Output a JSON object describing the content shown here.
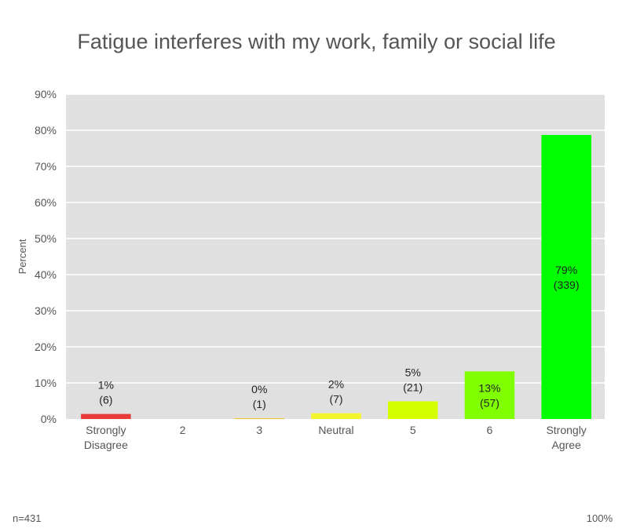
{
  "chart_data": {
    "type": "bar",
    "title": "Fatigue interferes with my work, family or social life",
    "ylabel": "Percent",
    "xlabel": "",
    "ylim": [
      0,
      90
    ],
    "yticks": [
      "0%",
      "10%",
      "20%",
      "30%",
      "40%",
      "50%",
      "60%",
      "70%",
      "80%",
      "90%"
    ],
    "grid": true,
    "categories": [
      [
        "Strongly",
        "Disagree"
      ],
      [
        "2"
      ],
      [
        "3"
      ],
      [
        "Neutral"
      ],
      [
        "5"
      ],
      [
        "6"
      ],
      [
        "Strongly",
        "Agree"
      ]
    ],
    "values": [
      1.4,
      0,
      0.2,
      1.6,
      4.9,
      13.2,
      78.7
    ],
    "labels": [
      [
        "1%",
        "(6)"
      ],
      null,
      [
        "0%",
        "(1)"
      ],
      [
        "2%",
        "(7)"
      ],
      [
        "5%",
        "(21)"
      ],
      [
        "13%",
        "(57)"
      ],
      [
        "79%",
        "(339)"
      ]
    ],
    "colors": [
      "#e83a3a",
      "#f08a2a",
      "#f2c21a",
      "#f4f42a",
      "#d4ff00",
      "#7fff00",
      "#00ff00"
    ],
    "plot_background": "#e0e0e0",
    "grid_color": "#ffffff"
  },
  "footer": {
    "n": "n=431",
    "total": "100%"
  }
}
